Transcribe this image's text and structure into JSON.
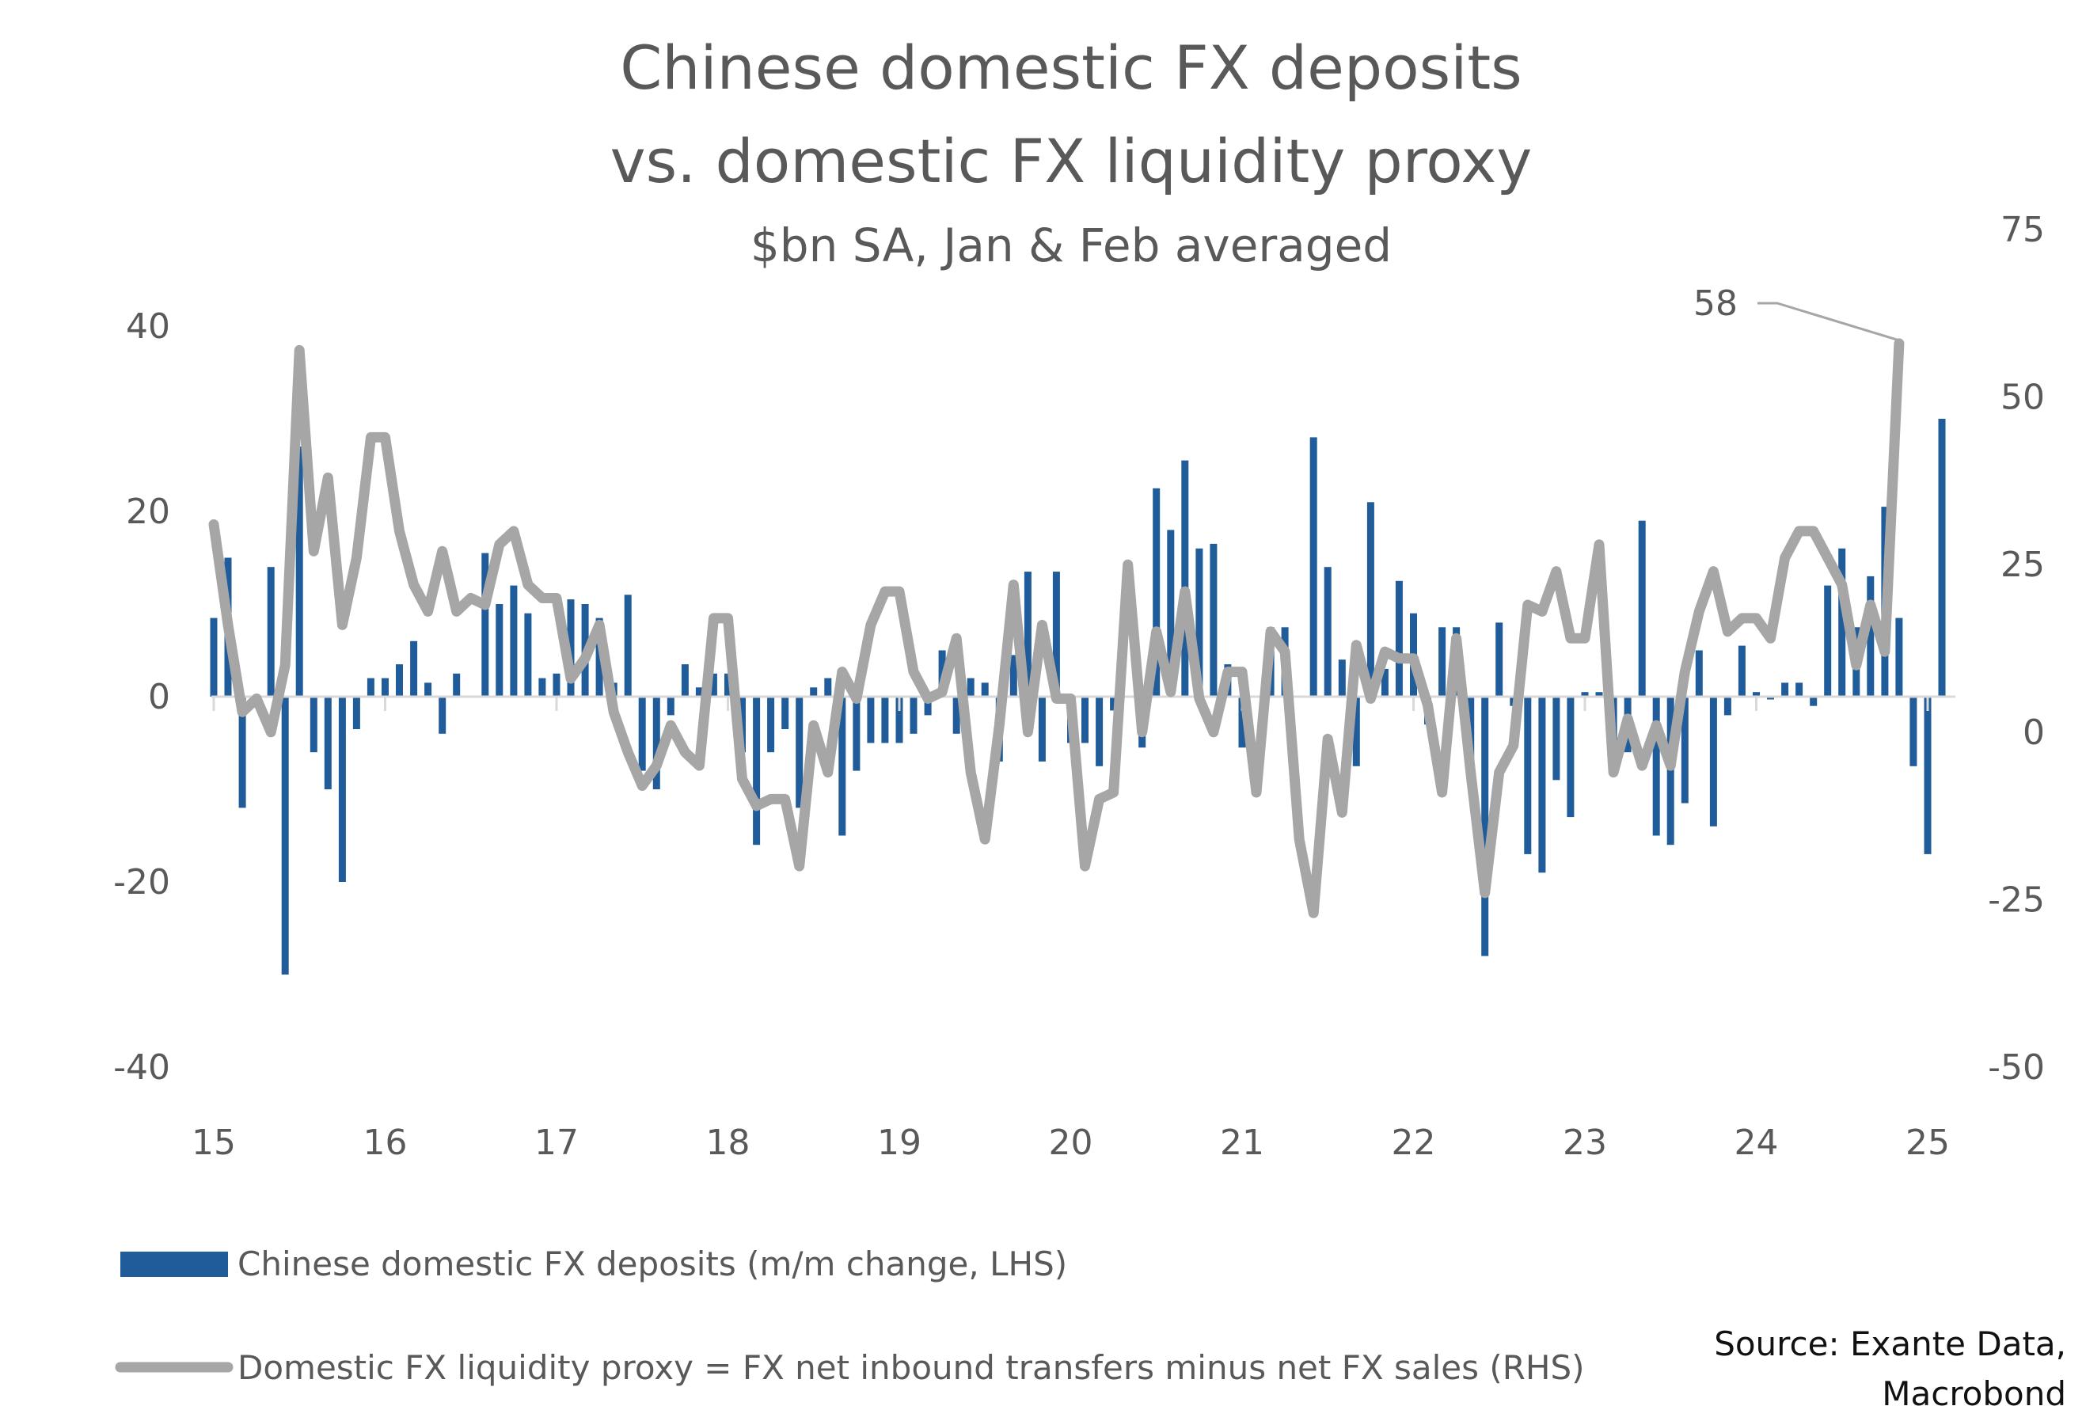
{
  "chart_data": {
    "type": "bar",
    "title_line1": "Chinese domestic FX deposits",
    "title_line2": "vs. domestic FX liquidity proxy",
    "subtitle": "$bn SA, Jan & Feb averaged",
    "x_ticks": [
      "15",
      "16",
      "17",
      "18",
      "19",
      "20",
      "21",
      "22",
      "23",
      "24",
      "25"
    ],
    "x_range": [
      15,
      25
    ],
    "y_left": {
      "range": [
        -40,
        40
      ],
      "ticks": [
        "40",
        "20",
        "0",
        "-20",
        "-40"
      ],
      "tick_values": [
        40,
        20,
        0,
        -20,
        -40
      ]
    },
    "y_right": {
      "range": [
        -50,
        75
      ],
      "ticks": [
        "75",
        "50",
        "25",
        "0",
        "-25",
        "-50"
      ],
      "tick_values": [
        75,
        50,
        25,
        0,
        -25,
        -50
      ]
    },
    "annotation": {
      "label": "58",
      "value": 58
    },
    "legend_position": "bottom-left",
    "series": [
      {
        "name": "Chinese domestic FX deposits (m/m change, LHS)",
        "kind": "bar",
        "axis": "left",
        "color": "#1F5C99",
        "x_start": 15.0,
        "x_step": 0.0833333,
        "values": [
          8.5,
          15,
          -12,
          -1,
          14,
          -30,
          27,
          -6,
          -10,
          -20,
          -3.5,
          2,
          2,
          3.5,
          6,
          1.5,
          -4,
          2.5,
          0,
          15.5,
          10,
          12,
          9,
          2,
          2.5,
          10.5,
          10,
          8.5,
          1.5,
          11,
          -8,
          -10,
          -2,
          3.5,
          1,
          2.5,
          2.5,
          -6,
          -16,
          -6,
          -3.5,
          -12,
          1,
          2,
          -15,
          -8,
          -5,
          -5,
          -5,
          -4,
          -2,
          5,
          -4,
          2,
          1.5,
          -7,
          4.5,
          13.5,
          -7,
          13.5,
          -5,
          -5,
          -7.5,
          -1.5,
          0,
          -5.5,
          22.5,
          18,
          25.5,
          16,
          16.5,
          3.5,
          -5.5,
          0,
          7.5,
          7.5,
          0,
          28,
          14,
          4,
          -7.5,
          21,
          3,
          12.5,
          9,
          -3,
          7.5,
          7.5,
          -7,
          -28,
          8,
          -1,
          -17,
          -19,
          -9,
          -13,
          0.5,
          0.5,
          -6,
          -6,
          19,
          -15,
          -16,
          -11.5,
          5,
          -14,
          -2,
          5.5,
          0.5,
          -0.3,
          1.5,
          1.5,
          -1,
          12,
          16,
          7.5,
          13,
          20.5,
          8.5,
          -7.5,
          -17,
          30
        ]
      },
      {
        "name": "Domestic FX liquidity proxy = FX net inbound transfers minus net FX sales (RHS)",
        "kind": "line",
        "axis": "right",
        "color": "#A6A6A6",
        "x_start": 15.0,
        "x_step": 0.0833333,
        "values": [
          31,
          16,
          3,
          5,
          0,
          10,
          57,
          27,
          38,
          16,
          26,
          44,
          44,
          30,
          22,
          18,
          27,
          18,
          20,
          19,
          28,
          30,
          22,
          20,
          20,
          8,
          11,
          16,
          3,
          -3,
          -8,
          -5,
          1,
          -3,
          -5,
          17,
          17,
          -7,
          -11,
          -10,
          -10,
          -20,
          1,
          -6,
          9,
          5,
          16,
          21,
          21,
          9,
          5,
          6,
          14,
          -6,
          -16,
          1,
          22,
          0,
          16,
          5,
          5,
          -20,
          -10,
          -9,
          25,
          0,
          15,
          6,
          21,
          5,
          0,
          9,
          9,
          -9,
          15,
          12,
          -16,
          -27,
          -1,
          -12,
          13,
          5,
          12,
          11,
          11,
          4,
          -9,
          14,
          -6,
          -24,
          -6,
          -2,
          19,
          18,
          24,
          14,
          14,
          28,
          -6,
          2,
          -5,
          1,
          -5,
          9,
          18,
          24,
          15,
          17,
          17,
          14,
          26,
          30,
          30,
          26,
          22,
          10,
          19,
          12,
          58
        ]
      }
    ],
    "source_line1": "Source: Exante Data,",
    "source_line2": "Macrobond"
  }
}
